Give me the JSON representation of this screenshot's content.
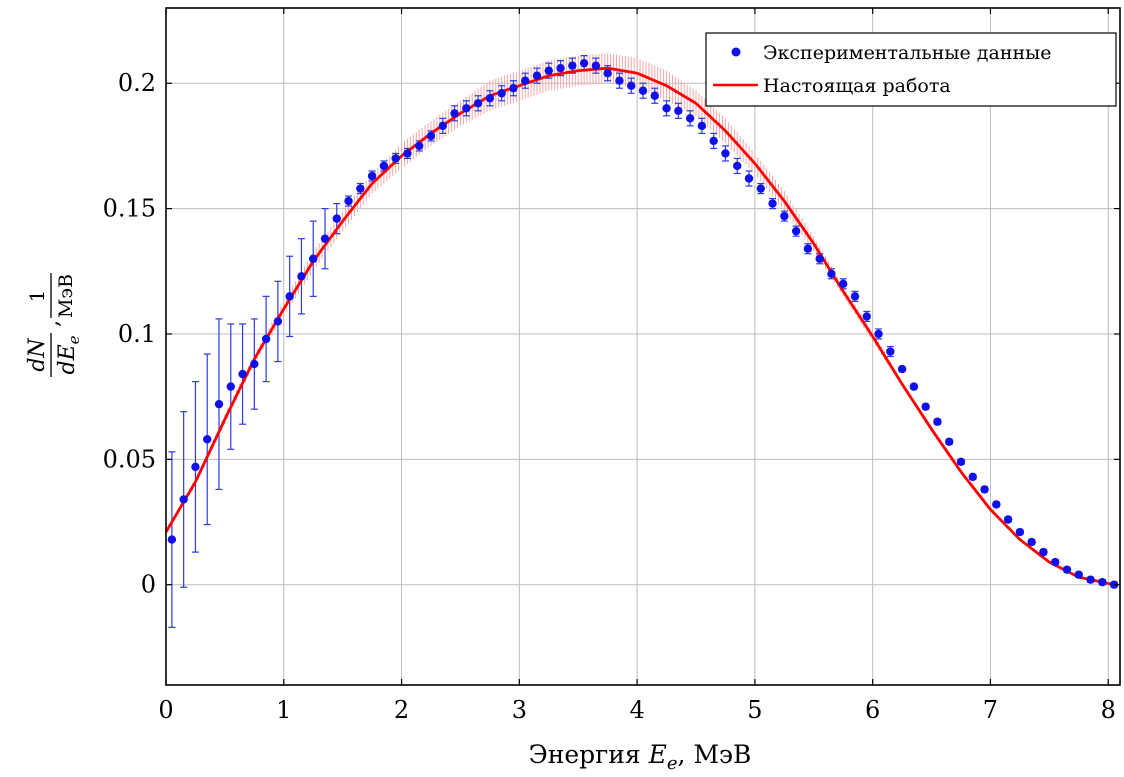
{
  "chart_data": {
    "type": "scatter",
    "xlabel_text": "Энергия",
    "xlabel_var": "E",
    "xlabel_sub": "e",
    "xlabel_unit": ", МэВ",
    "ylabel": {
      "frac1_num": "dN",
      "frac1_den_var": "dE",
      "frac1_den_sub": "e",
      "sep": ",",
      "frac2_num": "1",
      "frac2_den": "МэВ"
    },
    "xlim": [
      0,
      8.1
    ],
    "ylim": [
      -0.04,
      0.23
    ],
    "x_ticks": [
      0,
      1,
      2,
      3,
      4,
      5,
      6,
      7,
      8
    ],
    "x_tick_labels": [
      "0",
      "1",
      "2",
      "3",
      "4",
      "5",
      "6",
      "7",
      "8"
    ],
    "y_ticks": [
      0,
      0.05,
      0.1,
      0.15,
      0.2
    ],
    "y_tick_labels": [
      "0",
      "0.05",
      "0.1",
      "0.15",
      "0.2"
    ],
    "grid": true,
    "legend_position": "top-right",
    "colors": {
      "experimental": "#1010e8",
      "fit": "#ff0000",
      "band": "#f3a6a6",
      "error_bar": "#2b3be0"
    },
    "series": [
      {
        "name": "Экспериментальные данные",
        "kind": "points_with_error_bars",
        "x": [
          0.05,
          0.15,
          0.25,
          0.35,
          0.45,
          0.55,
          0.65,
          0.75,
          0.85,
          0.95,
          1.05,
          1.15,
          1.25,
          1.35,
          1.45,
          1.55,
          1.65,
          1.75,
          1.85,
          1.95,
          2.05,
          2.15,
          2.25,
          2.35,
          2.45,
          2.55,
          2.65,
          2.75,
          2.85,
          2.95,
          3.05,
          3.15,
          3.25,
          3.35,
          3.45,
          3.55,
          3.65,
          3.75,
          3.85,
          3.95,
          4.05,
          4.15,
          4.25,
          4.35,
          4.45,
          4.55,
          4.65,
          4.75,
          4.85,
          4.95,
          5.05,
          5.15,
          5.25,
          5.35,
          5.45,
          5.55,
          5.65,
          5.75,
          5.85,
          5.95,
          6.05,
          6.15,
          6.25,
          6.35,
          6.45,
          6.55,
          6.65,
          6.75,
          6.85,
          6.95,
          7.05,
          7.15,
          7.25,
          7.35,
          7.45,
          7.55,
          7.65,
          7.75,
          7.85,
          7.95,
          8.05
        ],
        "y": [
          0.018,
          0.034,
          0.047,
          0.058,
          0.072,
          0.079,
          0.084,
          0.088,
          0.098,
          0.105,
          0.115,
          0.123,
          0.13,
          0.138,
          0.146,
          0.153,
          0.158,
          0.163,
          0.167,
          0.17,
          0.172,
          0.175,
          0.179,
          0.183,
          0.188,
          0.19,
          0.192,
          0.194,
          0.196,
          0.198,
          0.201,
          0.203,
          0.205,
          0.206,
          0.207,
          0.208,
          0.207,
          0.204,
          0.201,
          0.199,
          0.197,
          0.195,
          0.19,
          0.189,
          0.186,
          0.183,
          0.177,
          0.172,
          0.167,
          0.162,
          0.158,
          0.152,
          0.147,
          0.141,
          0.134,
          0.13,
          0.124,
          0.12,
          0.115,
          0.107,
          0.1,
          0.093,
          0.086,
          0.079,
          0.071,
          0.065,
          0.057,
          0.049,
          0.043,
          0.038,
          0.032,
          0.026,
          0.021,
          0.017,
          0.013,
          0.009,
          0.006,
          0.004,
          0.002,
          0.001,
          0.0
        ],
        "yerr": [
          0.035,
          0.035,
          0.034,
          0.034,
          0.034,
          0.025,
          0.02,
          0.018,
          0.017,
          0.016,
          0.016,
          0.015,
          0.015,
          0.012,
          0.006,
          0.002,
          0.002,
          0.002,
          0.002,
          0.002,
          0.002,
          0.002,
          0.002,
          0.003,
          0.003,
          0.003,
          0.003,
          0.003,
          0.003,
          0.003,
          0.003,
          0.003,
          0.003,
          0.003,
          0.003,
          0.003,
          0.003,
          0.003,
          0.003,
          0.003,
          0.003,
          0.003,
          0.003,
          0.003,
          0.003,
          0.003,
          0.003,
          0.003,
          0.003,
          0.003,
          0.002,
          0.002,
          0.002,
          0.002,
          0.002,
          0.002,
          0.002,
          0.002,
          0.002,
          0.002,
          0.002,
          0.002,
          0.001,
          0.001,
          0.001,
          0.001,
          0.001,
          0.001,
          0.001,
          0.001,
          0.001,
          0.001,
          0.001,
          0.001,
          0.001,
          0.001,
          0.001,
          0.001,
          0.001,
          0.001,
          0.001
        ]
      },
      {
        "name": "Настоящая работа",
        "kind": "line_with_band",
        "x": [
          0.0,
          0.25,
          0.5,
          0.75,
          1.0,
          1.25,
          1.5,
          1.75,
          2.0,
          2.25,
          2.5,
          2.75,
          3.0,
          3.25,
          3.5,
          3.75,
          4.0,
          4.25,
          4.5,
          4.75,
          5.0,
          5.25,
          5.5,
          5.75,
          6.0,
          6.25,
          6.5,
          6.75,
          7.0,
          7.25,
          7.5,
          7.75,
          8.0,
          8.05
        ],
        "y": [
          0.021,
          0.041,
          0.066,
          0.09,
          0.11,
          0.129,
          0.145,
          0.16,
          0.171,
          0.18,
          0.188,
          0.195,
          0.199,
          0.203,
          0.205,
          0.206,
          0.204,
          0.199,
          0.192,
          0.181,
          0.168,
          0.153,
          0.136,
          0.117,
          0.099,
          0.08,
          0.062,
          0.045,
          0.03,
          0.018,
          0.009,
          0.003,
          0.0005,
          0.0
        ],
        "band": [
          0.001,
          0.0015,
          0.002,
          0.002,
          0.003,
          0.004,
          0.004,
          0.004,
          0.005,
          0.005,
          0.005,
          0.006,
          0.006,
          0.006,
          0.006,
          0.006,
          0.006,
          0.006,
          0.005,
          0.005,
          0.004,
          0.004,
          0.003,
          0.002,
          0.002,
          0.001,
          0.001,
          0.001,
          0.001,
          0.0005,
          0.0005,
          0.0003,
          0.0002,
          0.0
        ]
      }
    ]
  }
}
